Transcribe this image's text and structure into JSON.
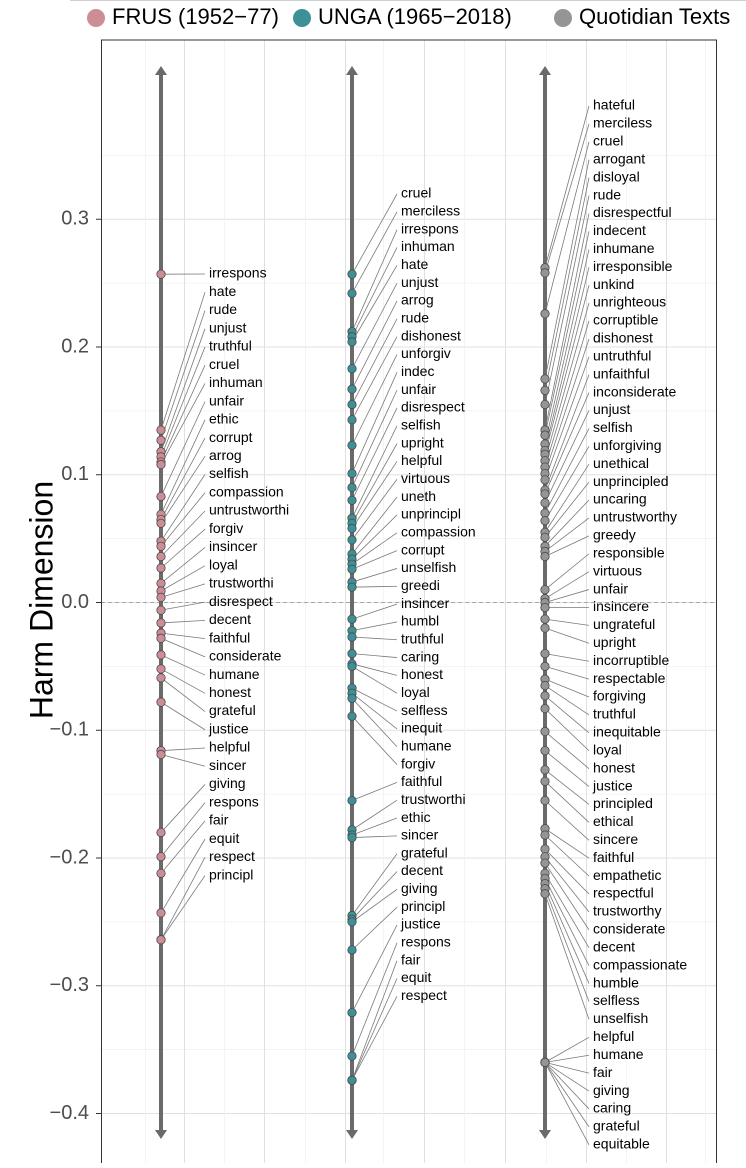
{
  "chart_data": {
    "type": "scatter",
    "ylabel": "Harm Dimension",
    "ylim": [
      -0.42,
      0.42
    ],
    "yticks": [
      "0.3",
      "0.2",
      "0.1",
      "0.0",
      "−0.1",
      "−0.2",
      "−0.3",
      "−0.4"
    ],
    "ytick_values": [
      0.3,
      0.2,
      0.1,
      0.0,
      -0.1,
      -0.2,
      -0.3,
      -0.4
    ],
    "grid": true,
    "reference_line": 0.0,
    "legend_position": "top",
    "series": [
      {
        "name": "FRUS (1952−77)",
        "color": "#cc8d96",
        "points": [
          {
            "label": "irrespons",
            "value": 0.257
          },
          {
            "label": "hate",
            "value": 0.135
          },
          {
            "label": "rude",
            "value": 0.127
          },
          {
            "label": "unjust",
            "value": 0.118
          },
          {
            "label": "truthful",
            "value": 0.114
          },
          {
            "label": "cruel",
            "value": 0.11
          },
          {
            "label": "inhuman",
            "value": 0.108
          },
          {
            "label": "unfair",
            "value": 0.083
          },
          {
            "label": "ethic",
            "value": 0.069
          },
          {
            "label": "corrupt",
            "value": 0.065
          },
          {
            "label": "arrog",
            "value": 0.062
          },
          {
            "label": "selfish",
            "value": 0.048
          },
          {
            "label": "compassion",
            "value": 0.044
          },
          {
            "label": "untrustworthi",
            "value": 0.036
          },
          {
            "label": "forgiv",
            "value": 0.027
          },
          {
            "label": "insincer",
            "value": 0.015
          },
          {
            "label": "loyal",
            "value": 0.009
          },
          {
            "label": "trustworthi",
            "value": 0.004
          },
          {
            "label": "disrespect",
            "value": -0.006
          },
          {
            "label": "decent",
            "value": -0.016
          },
          {
            "label": "faithful",
            "value": -0.024
          },
          {
            "label": "considerate",
            "value": -0.028
          },
          {
            "label": "humane",
            "value": -0.041
          },
          {
            "label": "honest",
            "value": -0.052
          },
          {
            "label": "grateful",
            "value": -0.059
          },
          {
            "label": "justice",
            "value": -0.078
          },
          {
            "label": "helpful",
            "value": -0.116
          },
          {
            "label": "sincer",
            "value": -0.119
          },
          {
            "label": "giving",
            "value": -0.18
          },
          {
            "label": "respons",
            "value": -0.199
          },
          {
            "label": "fair",
            "value": -0.212
          },
          {
            "label": "equit",
            "value": -0.243
          },
          {
            "label": "respect",
            "value": -0.264
          },
          {
            "label": "principl",
            "value": -0.264
          }
        ]
      },
      {
        "name": "UNGA (1965−2018)",
        "color": "#3d9098",
        "points": [
          {
            "label": "cruel",
            "value": 0.257
          },
          {
            "label": "merciless",
            "value": 0.242
          },
          {
            "label": "irrespons",
            "value": 0.212
          },
          {
            "label": "inhuman",
            "value": 0.208
          },
          {
            "label": "hate",
            "value": 0.204
          },
          {
            "label": "unjust",
            "value": 0.183
          },
          {
            "label": "arrog",
            "value": 0.167
          },
          {
            "label": "rude",
            "value": 0.155
          },
          {
            "label": "dishonest",
            "value": 0.143
          },
          {
            "label": "unforgiv",
            "value": 0.123
          },
          {
            "label": "indec",
            "value": 0.101
          },
          {
            "label": "unfair",
            "value": 0.09
          },
          {
            "label": "disrespect",
            "value": 0.08
          },
          {
            "label": "selfish",
            "value": 0.066
          },
          {
            "label": "upright",
            "value": 0.062
          },
          {
            "label": "helpful",
            "value": 0.058
          },
          {
            "label": "virtuous",
            "value": 0.049
          },
          {
            "label": "uneth",
            "value": 0.038
          },
          {
            "label": "unprincipl",
            "value": 0.034
          },
          {
            "label": "compassion",
            "value": 0.03
          },
          {
            "label": "corrupt",
            "value": 0.026
          },
          {
            "label": "unselfish",
            "value": 0.016
          },
          {
            "label": "greedi",
            "value": 0.012
          },
          {
            "label": "insincer",
            "value": -0.013
          },
          {
            "label": "humbl",
            "value": -0.022
          },
          {
            "label": "truthful",
            "value": -0.027
          },
          {
            "label": "caring",
            "value": -0.04
          },
          {
            "label": "honest",
            "value": -0.048
          },
          {
            "label": "loyal",
            "value": -0.05
          },
          {
            "label": "selfless",
            "value": -0.067
          },
          {
            "label": "inequit",
            "value": -0.071
          },
          {
            "label": "humane",
            "value": -0.075
          },
          {
            "label": "forgiv",
            "value": -0.089
          },
          {
            "label": "faithful",
            "value": -0.155
          },
          {
            "label": "trustworthi",
            "value": -0.178
          },
          {
            "label": "ethic",
            "value": -0.182
          },
          {
            "label": "sincer",
            "value": -0.184
          },
          {
            "label": "grateful",
            "value": -0.245
          },
          {
            "label": "decent",
            "value": -0.248
          },
          {
            "label": "giving",
            "value": -0.25
          },
          {
            "label": "principl",
            "value": -0.272
          },
          {
            "label": "justice",
            "value": -0.321
          },
          {
            "label": "respons",
            "value": -0.355
          },
          {
            "label": "fair",
            "value": -0.374
          },
          {
            "label": "equit",
            "value": -0.374
          },
          {
            "label": "respect",
            "value": -0.374
          }
        ]
      },
      {
        "name": "Quotidian Texts",
        "color": "#959595",
        "points": [
          {
            "label": "hateful",
            "value": 0.262
          },
          {
            "label": "merciless",
            "value": 0.258
          },
          {
            "label": "cruel",
            "value": 0.226
          },
          {
            "label": "arrogant",
            "value": 0.175
          },
          {
            "label": "disloyal",
            "value": 0.166
          },
          {
            "label": "rude",
            "value": 0.155
          },
          {
            "label": "disrespectful",
            "value": 0.135
          },
          {
            "label": "indecent",
            "value": 0.131
          },
          {
            "label": "inhumane",
            "value": 0.124
          },
          {
            "label": "irresponsible",
            "value": 0.119
          },
          {
            "label": "unkind",
            "value": 0.116
          },
          {
            "label": "unrighteous",
            "value": 0.111
          },
          {
            "label": "corruptible",
            "value": 0.106
          },
          {
            "label": "dishonest",
            "value": 0.101
          },
          {
            "label": "untruthful",
            "value": 0.096
          },
          {
            "label": "unfaithful",
            "value": 0.088
          },
          {
            "label": "inconsiderate",
            "value": 0.085
          },
          {
            "label": "unjust",
            "value": 0.078
          },
          {
            "label": "selfish",
            "value": 0.07
          },
          {
            "label": "unforgiving",
            "value": 0.064
          },
          {
            "label": "unethical",
            "value": 0.055
          },
          {
            "label": "unprincipled",
            "value": 0.051
          },
          {
            "label": "uncaring",
            "value": 0.044
          },
          {
            "label": "untrustworthy",
            "value": 0.04
          },
          {
            "label": "greedy",
            "value": 0.036
          },
          {
            "label": "responsible",
            "value": 0.01
          },
          {
            "label": "virtuous",
            "value": 0.003
          },
          {
            "label": "unfair",
            "value": 0.0
          },
          {
            "label": "insincere",
            "value": -0.004
          },
          {
            "label": "ungrateful",
            "value": -0.013
          },
          {
            "label": "upright",
            "value": -0.02
          },
          {
            "label": "incorruptible",
            "value": -0.04
          },
          {
            "label": "respectable",
            "value": -0.05
          },
          {
            "label": "forgiving",
            "value": -0.06
          },
          {
            "label": "truthful",
            "value": -0.065
          },
          {
            "label": "inequitable",
            "value": -0.073
          },
          {
            "label": "loyal",
            "value": -0.083
          },
          {
            "label": "honest",
            "value": -0.101
          },
          {
            "label": "justice",
            "value": -0.116
          },
          {
            "label": "principled",
            "value": -0.131
          },
          {
            "label": "ethical",
            "value": -0.14
          },
          {
            "label": "sincere",
            "value": -0.155
          },
          {
            "label": "faithful",
            "value": -0.177
          },
          {
            "label": "empathetic",
            "value": -0.182
          },
          {
            "label": "respectful",
            "value": -0.193
          },
          {
            "label": "trustworthy",
            "value": -0.199
          },
          {
            "label": "considerate",
            "value": -0.204
          },
          {
            "label": "decent",
            "value": -0.212
          },
          {
            "label": "compassionate",
            "value": -0.216
          },
          {
            "label": "humble",
            "value": -0.22
          },
          {
            "label": "selfless",
            "value": -0.224
          },
          {
            "label": "unselfish",
            "value": -0.228
          },
          {
            "label": "helpful",
            "value": -0.36
          },
          {
            "label": "humane",
            "value": -0.36
          },
          {
            "label": "fair",
            "value": -0.36
          },
          {
            "label": "giving",
            "value": -0.36
          },
          {
            "label": "caring",
            "value": -0.36
          },
          {
            "label": "grateful",
            "value": -0.36
          },
          {
            "label": "equitable",
            "value": -0.36
          }
        ]
      }
    ]
  }
}
